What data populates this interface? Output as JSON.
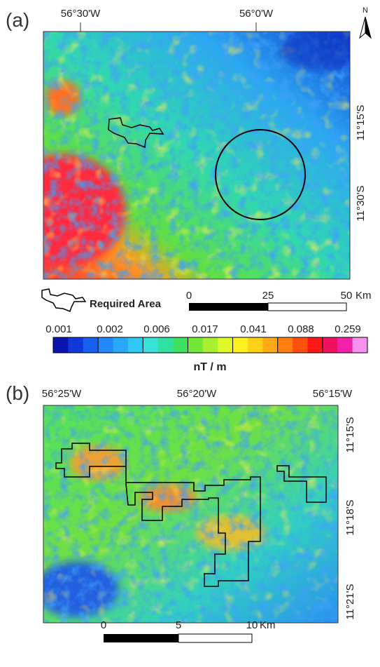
{
  "panel_a": {
    "label": "(a)",
    "top_axis": [
      "56°30'W",
      "56°0'W"
    ],
    "right_axis": [
      "11°15'S",
      "11°30'S"
    ],
    "north": "N",
    "legend": "Required Area",
    "scale_bar": [
      "0",
      "25",
      "50",
      "Km"
    ]
  },
  "colorbar": {
    "labels": [
      "0.001",
      "0.002",
      "0.006",
      "0.017",
      "0.041",
      "0.088",
      "0.259"
    ],
    "unit": "nT / m"
  },
  "panel_b": {
    "label": "(b)",
    "top_axis": [
      "56°25'W",
      "56°20'W",
      "56°15'W"
    ],
    "right_axis": [
      "11°15'S",
      "11°18'S",
      "11°21'S"
    ],
    "scale_bar": [
      "0",
      "5",
      "10",
      "Km"
    ]
  }
}
